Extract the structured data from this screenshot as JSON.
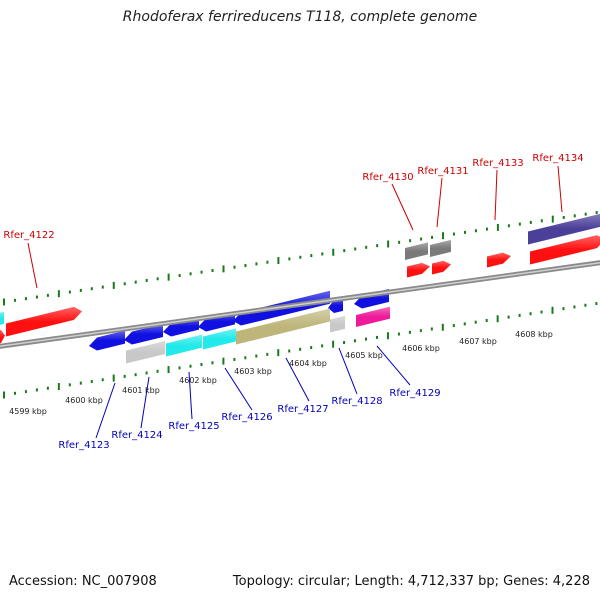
{
  "title": "Rhodoferax ferrireducens T118, complete genome",
  "footer": {
    "accession": "Accession: NC_007908",
    "info": "Topology: circular; Length: 4,712,337 bp; Genes: 4,228"
  },
  "colors": {
    "axis": "#8a8a8a",
    "tick": "#1a7a1a",
    "forward_label": "#cc0000",
    "reverse_label": "#0000bb",
    "red": "#ff1010",
    "blue": "#1010e0",
    "gray": "#7a7a7a",
    "lightgray": "#c8c8c8",
    "cyan": "#22eaea",
    "olive": "#bdb57a",
    "magenta": "#ee1a99",
    "purple": "#4a3f99"
  },
  "kbp_labels": [
    "4599 kbp",
    "4600 kbp",
    "4601 kbp",
    "4602 kbp",
    "4603 kbp",
    "4604 kbp",
    "4605 kbp",
    "4606 kbp",
    "4607 kbp",
    "4608 kbp"
  ],
  "forward_genes": [
    "Rfer_4122",
    "Rfer_4130",
    "Rfer_4131",
    "Rfer_4133",
    "Rfer_4134"
  ],
  "reverse_genes": [
    "Rfer_4123",
    "Rfer_4124",
    "Rfer_4125",
    "Rfer_4126",
    "Rfer_4127",
    "Rfer_4128",
    "Rfer_4129"
  ]
}
